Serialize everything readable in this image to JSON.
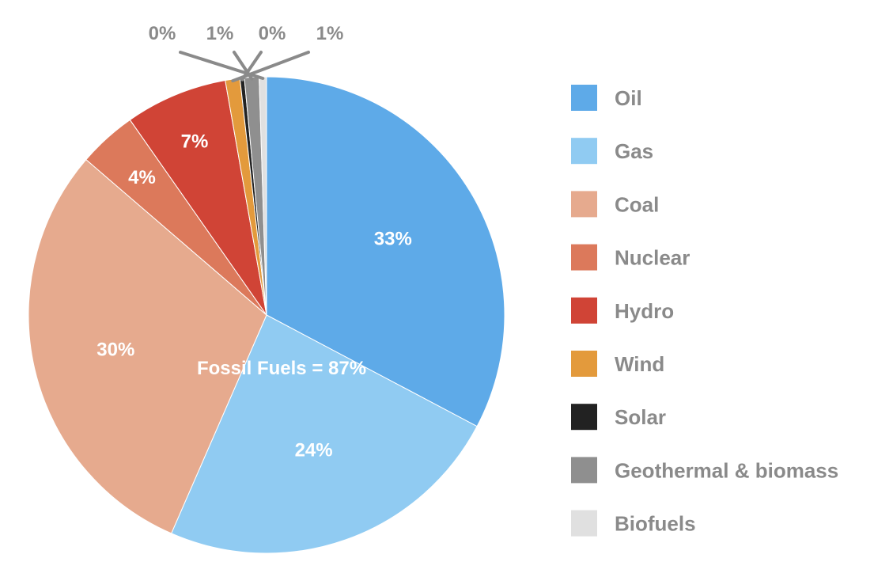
{
  "chart_data": {
    "type": "pie",
    "title": "",
    "annotation": "Fossil Fuels = 87%",
    "slices": [
      {
        "name": "Oil",
        "value": 33,
        "label": "33%",
        "color": "#5eaae8"
      },
      {
        "name": "Gas",
        "value": 24,
        "label": "24%",
        "color": "#90cbf2"
      },
      {
        "name": "Coal",
        "value": 30,
        "label": "30%",
        "color": "#e6aa8e"
      },
      {
        "name": "Nuclear",
        "value": 4,
        "label": "4%",
        "color": "#dc795b"
      },
      {
        "name": "Hydro",
        "value": 7,
        "label": "7%",
        "color": "#d04436"
      },
      {
        "name": "Wind",
        "value": 1,
        "label": "1%",
        "color": "#e39a3c"
      },
      {
        "name": "Solar",
        "value": 0.3,
        "label": "0%",
        "color": "#222222"
      },
      {
        "name": "Geothermal & biomass",
        "value": 1,
        "label": "1%",
        "color": "#8f8f8f"
      },
      {
        "name": "Biofuels",
        "value": 0.5,
        "label": "0%",
        "color": "#e0e0e0"
      }
    ],
    "legend_position": "right"
  }
}
